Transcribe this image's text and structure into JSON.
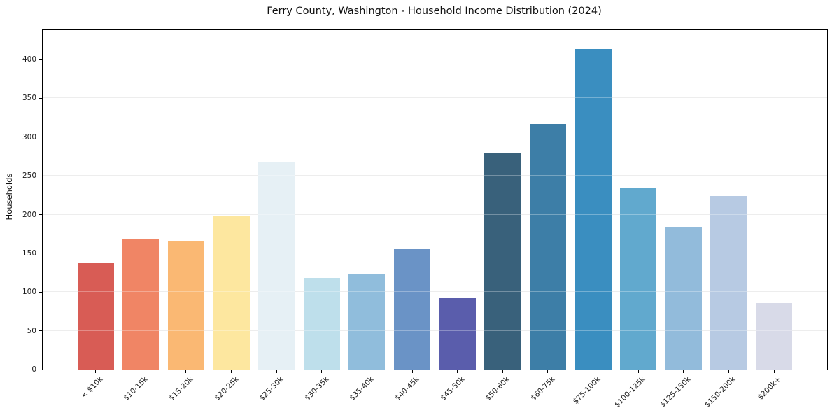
{
  "chart_data": {
    "type": "bar",
    "title": "Ferry County, Washington - Household Income Distribution (2024)",
    "xlabel": "",
    "ylabel": "Households",
    "categories": [
      "< $10k",
      "$10-15k",
      "$15-20k",
      "$20-25k",
      "$25-30k",
      "$30-35k",
      "$35-40k",
      "$40-45k",
      "$45-50k",
      "$50-60k",
      "$60-75k",
      "$75-100k",
      "$100-125k",
      "$125-150k",
      "$150-200k",
      "$200k+"
    ],
    "values": [
      137,
      169,
      165,
      199,
      267,
      118,
      124,
      155,
      92,
      279,
      317,
      414,
      235,
      184,
      224,
      86
    ],
    "colors": [
      "#d85c55",
      "#f08565",
      "#fab873",
      "#fde79f",
      "#e6f0f5",
      "#bedfeb",
      "#90bddc",
      "#6a93c6",
      "#5a5dac",
      "#39617b",
      "#3d7ea7",
      "#3a8ec0",
      "#61a9ce",
      "#92bbdb",
      "#b7cae3",
      "#d8dae8"
    ],
    "y_ticks": [
      0,
      50,
      100,
      150,
      200,
      250,
      300,
      350,
      400
    ],
    "ylim": [
      0,
      438
    ],
    "grid": "horizontal",
    "legend": "none",
    "background_color": "#ffffff",
    "frame_color": "#000000",
    "gridline_color": "#e6e6e6"
  }
}
